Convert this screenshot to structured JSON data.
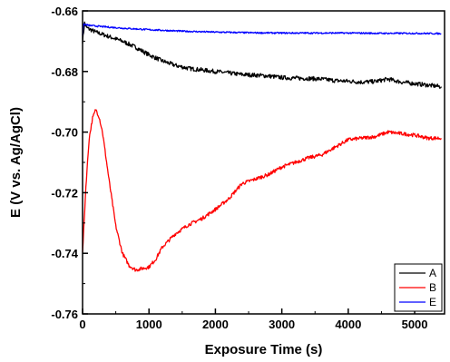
{
  "chart_data": {
    "type": "line",
    "title": "",
    "xlabel": "Exposure Time (s)",
    "ylabel": "E (V vs. Ag/AgCl)",
    "xlim": [
      0,
      5450
    ],
    "ylim": [
      -0.76,
      -0.66
    ],
    "x_ticks": [
      0,
      1000,
      2000,
      3000,
      4000,
      5000
    ],
    "x_tick_labels": [
      "0",
      "1000",
      "2000",
      "3000",
      "4000",
      "5000"
    ],
    "y_ticks": [
      -0.76,
      -0.74,
      -0.72,
      -0.7,
      -0.68,
      -0.66
    ],
    "y_tick_labels": [
      "-0.76",
      "-0.74",
      "-0.72",
      "-0.70",
      "-0.68",
      "-0.66"
    ],
    "grid": false,
    "legend_position": "bottom-right",
    "series": [
      {
        "name": "A",
        "color": "#000000",
        "x": [
          0,
          30,
          60,
          100,
          200,
          400,
          600,
          800,
          1000,
          1200,
          1400,
          1600,
          1800,
          2000,
          2200,
          2400,
          2600,
          2800,
          3000,
          3200,
          3400,
          3600,
          3800,
          4000,
          4200,
          4400,
          4600,
          4800,
          5000,
          5200,
          5400
        ],
        "values": [
          -0.67,
          -0.664,
          -0.6655,
          -0.666,
          -0.667,
          -0.6685,
          -0.67,
          -0.672,
          -0.6745,
          -0.6765,
          -0.678,
          -0.679,
          -0.6795,
          -0.68,
          -0.6805,
          -0.681,
          -0.6812,
          -0.6815,
          -0.682,
          -0.6822,
          -0.6823,
          -0.6825,
          -0.683,
          -0.6832,
          -0.6835,
          -0.6833,
          -0.6825,
          -0.6835,
          -0.684,
          -0.6845,
          -0.685
        ]
      },
      {
        "name": "B",
        "color": "#ff0000",
        "x": [
          0,
          50,
          100,
          150,
          200,
          250,
          300,
          400,
          500,
          600,
          700,
          800,
          900,
          1000,
          1100,
          1200,
          1400,
          1600,
          1800,
          2000,
          2200,
          2400,
          2600,
          2800,
          3000,
          3200,
          3400,
          3600,
          3800,
          4000,
          4200,
          4400,
          4600,
          4800,
          5000,
          5200,
          5400
        ],
        "values": [
          -0.74,
          -0.718,
          -0.702,
          -0.6955,
          -0.6925,
          -0.695,
          -0.7,
          -0.716,
          -0.731,
          -0.74,
          -0.744,
          -0.7455,
          -0.745,
          -0.7445,
          -0.742,
          -0.738,
          -0.7335,
          -0.7305,
          -0.7285,
          -0.7255,
          -0.722,
          -0.717,
          -0.7155,
          -0.714,
          -0.7115,
          -0.71,
          -0.7085,
          -0.7075,
          -0.705,
          -0.7025,
          -0.702,
          -0.7015,
          -0.7,
          -0.7005,
          -0.701,
          -0.702,
          -0.702
        ]
      },
      {
        "name": "E",
        "color": "#0000ff",
        "x": [
          0,
          15,
          40,
          100,
          300,
          600,
          1000,
          1500,
          2000,
          2500,
          3000,
          3500,
          4000,
          4500,
          5000,
          5400
        ],
        "values": [
          -0.668,
          -0.6645,
          -0.6645,
          -0.6648,
          -0.6652,
          -0.6657,
          -0.6662,
          -0.6667,
          -0.667,
          -0.6672,
          -0.6673,
          -0.6673,
          -0.6673,
          -0.6674,
          -0.6674,
          -0.6675
        ]
      }
    ]
  }
}
